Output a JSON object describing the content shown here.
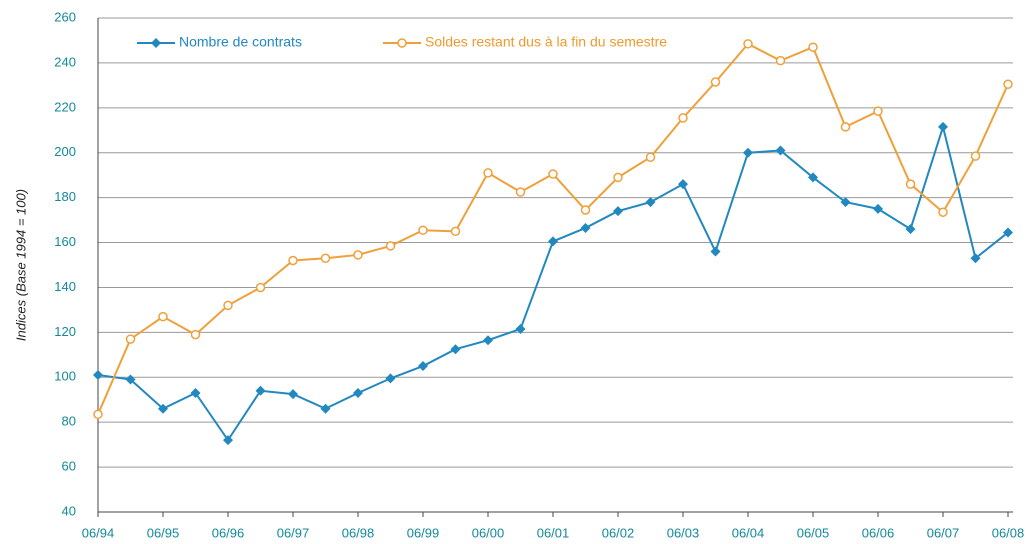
{
  "chart_data": {
    "type": "line",
    "y_label": "Indices (Base 1994 = 100)",
    "categories": [
      "06/94",
      null,
      "06/95",
      null,
      "06/96",
      null,
      "06/97",
      null,
      "06/98",
      null,
      "06/99",
      null,
      "06/00",
      null,
      "06/01",
      null,
      "06/02",
      null,
      "06/03",
      null,
      "06/04",
      null,
      "06/05",
      null,
      "06/06",
      null,
      "06/07",
      null,
      "06/08"
    ],
    "series": [
      {
        "name": "Nombre de contrats",
        "color": "#2188c0",
        "marker": "diamond",
        "values": [
          101,
          99,
          86,
          93,
          72,
          94,
          92.5,
          86,
          93,
          99.5,
          105,
          112.5,
          116.5,
          121.5,
          160.5,
          166.5,
          174,
          178,
          186,
          156,
          200,
          201,
          189,
          178,
          175,
          166,
          211.5,
          153,
          164.5
        ]
      },
      {
        "name": "Soldes restant dus à la fin du semestre",
        "color": "#f0a03a",
        "marker": "circle",
        "values": [
          83.5,
          117,
          127,
          119,
          132,
          140,
          152,
          153,
          154.5,
          158.5,
          165.5,
          165,
          191,
          182.5,
          190.5,
          174.5,
          189,
          198,
          215.5,
          231.5,
          248.5,
          241,
          247,
          211.5,
          218.5,
          186,
          173.5,
          198.5,
          230.5
        ]
      }
    ],
    "ylim": [
      40,
      260
    ],
    "yticks": [
      40,
      60,
      80,
      100,
      120,
      140,
      160,
      180,
      200,
      220,
      240,
      260
    ],
    "grid": true,
    "legend": "top"
  }
}
